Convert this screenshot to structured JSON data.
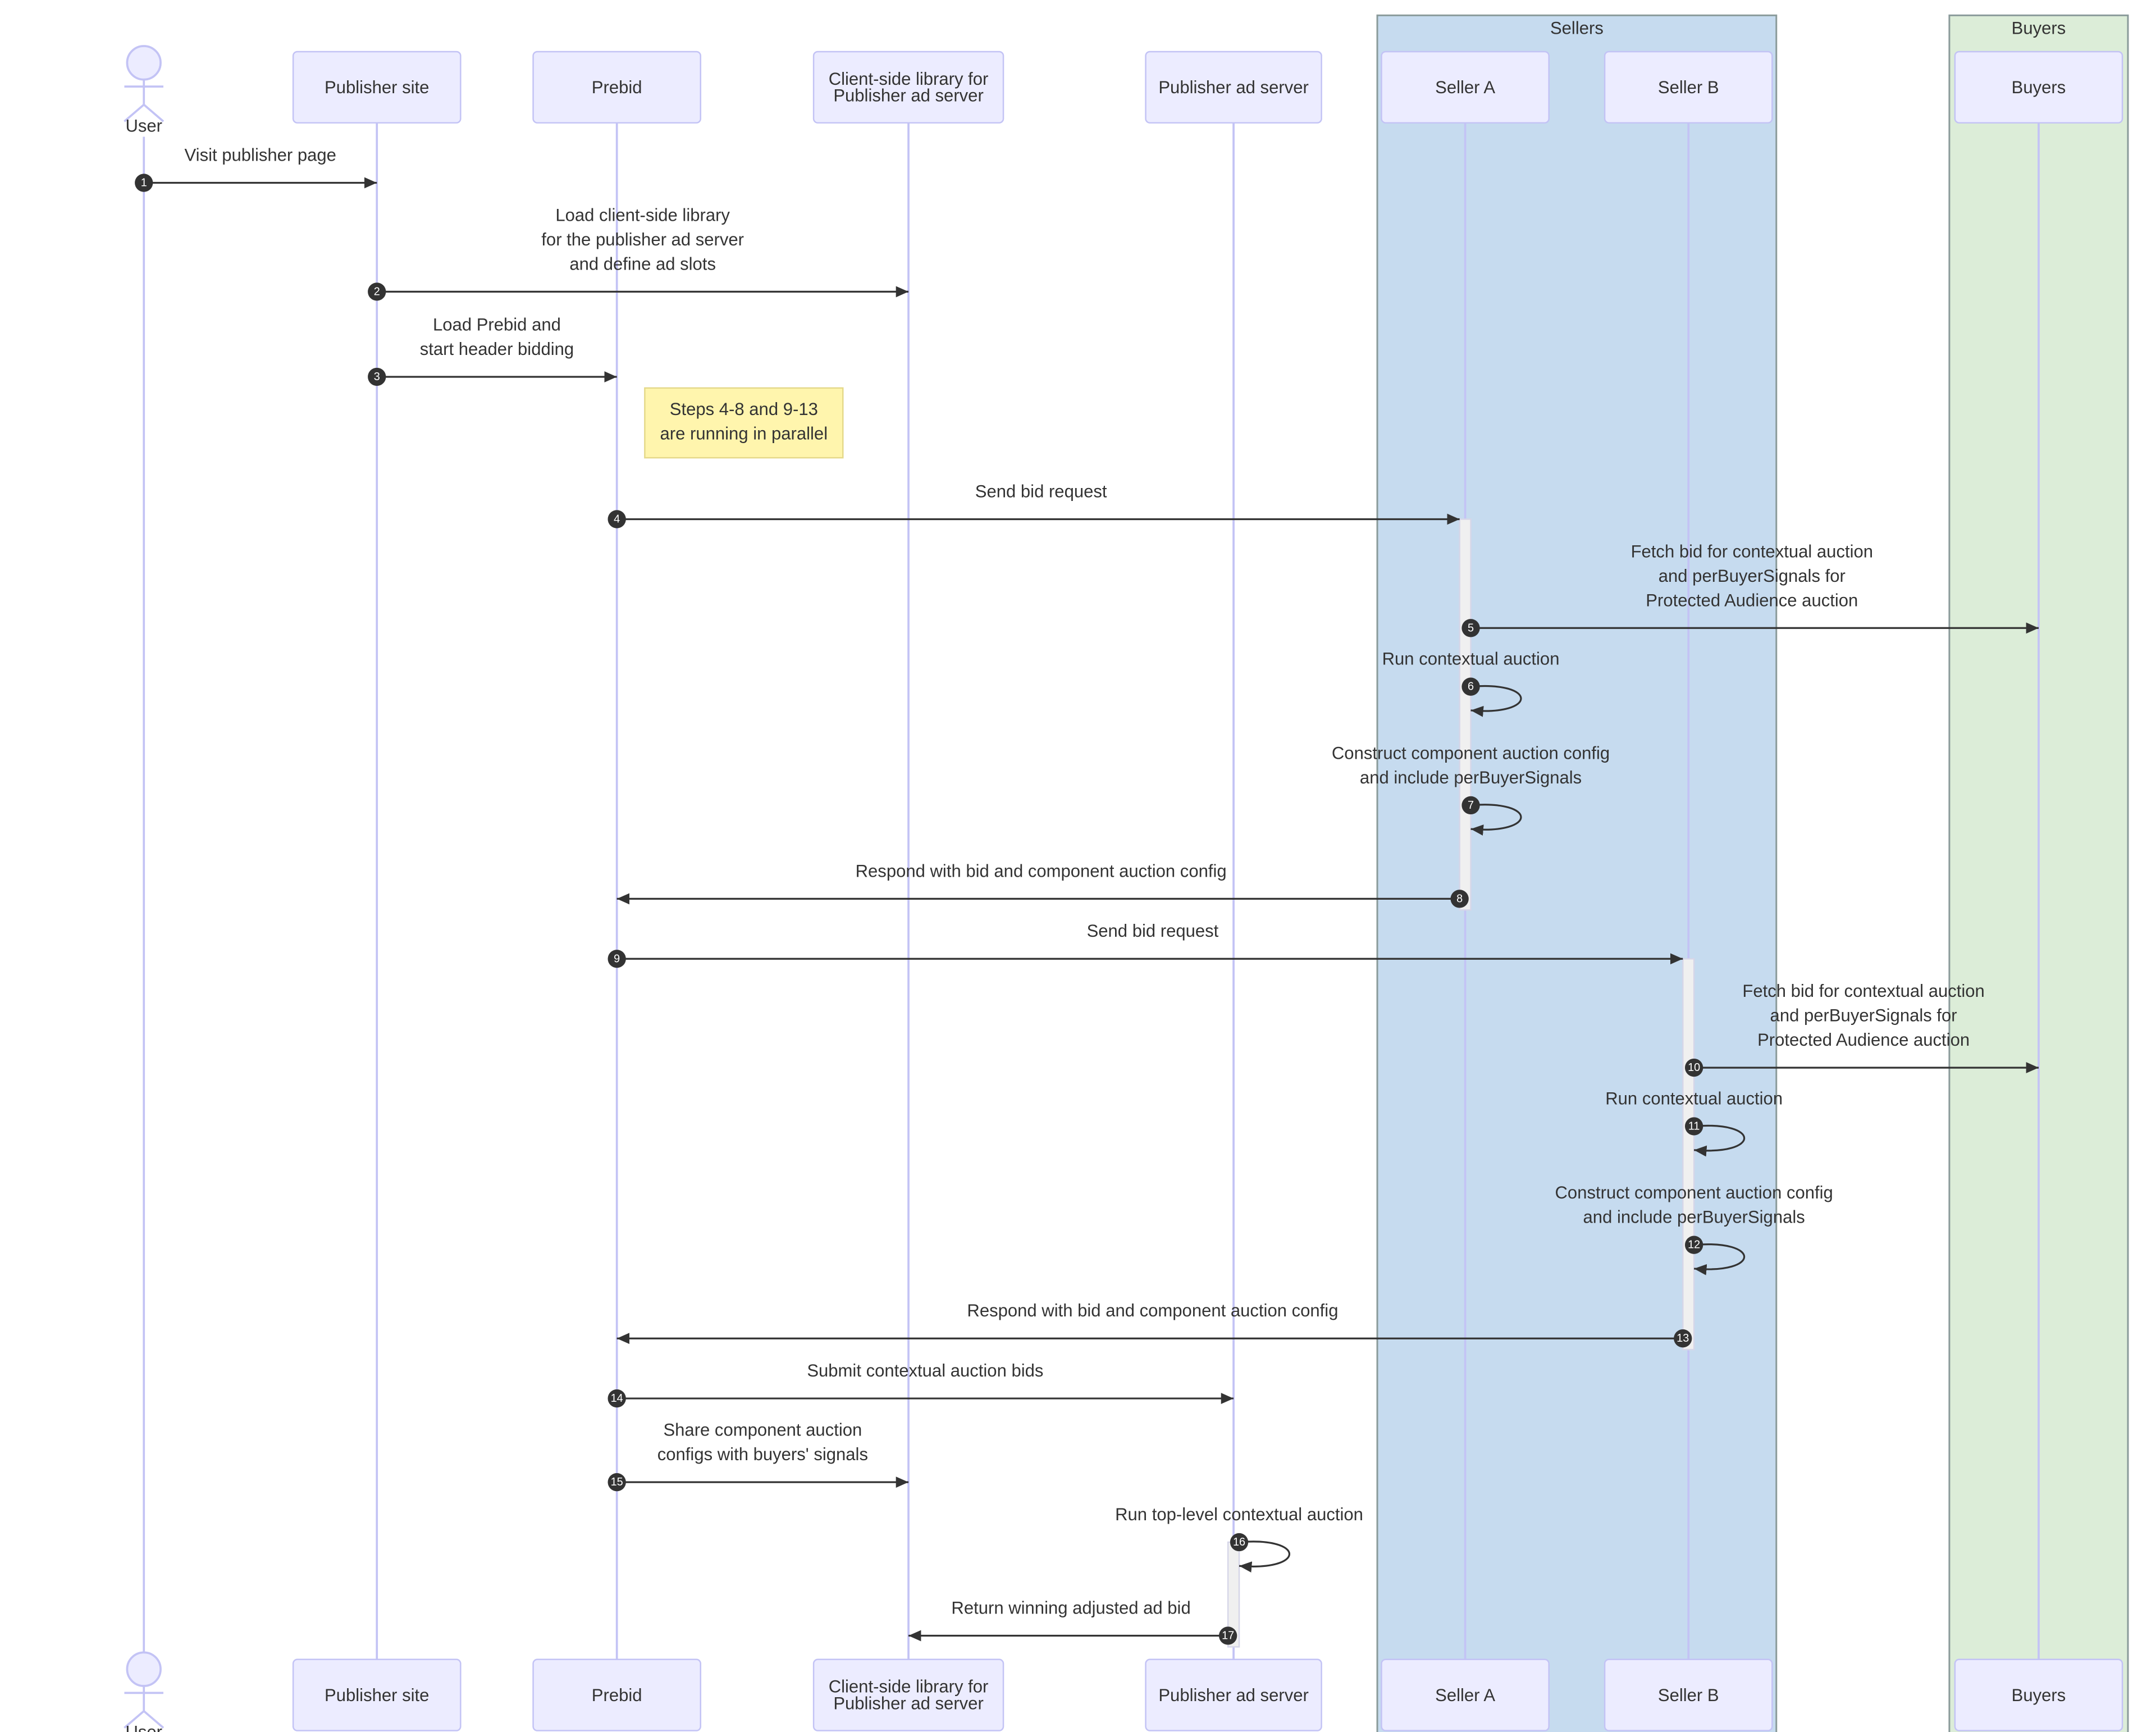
{
  "participants": [
    {
      "label": "User",
      "type": "actor"
    },
    {
      "label": "Publisher site",
      "type": "box"
    },
    {
      "label": "Prebid",
      "type": "box"
    },
    {
      "label": "Client-side library for\nPublisher ad server",
      "type": "box"
    },
    {
      "label": "Publisher ad server",
      "type": "box"
    },
    {
      "label": "Seller A",
      "type": "box"
    },
    {
      "label": "Seller B",
      "type": "box"
    },
    {
      "label": "Buyers",
      "type": "box"
    }
  ],
  "groups": [
    {
      "title": "Sellers",
      "color": "#c6dbef",
      "members": [
        5,
        6
      ]
    },
    {
      "title": "Buyers",
      "color": "#dcedd8",
      "members": [
        7
      ]
    }
  ],
  "note": {
    "text": [
      "Steps 4-8 and 9-13",
      "are running in parallel"
    ],
    "color": "#fff5ad"
  },
  "messages": [
    {
      "n": 1,
      "from": 0,
      "to": 1,
      "label": [
        "Visit publisher page"
      ]
    },
    {
      "n": 2,
      "from": 1,
      "to": 3,
      "label": [
        "Load client-side library",
        "for the publisher ad server",
        "and define ad slots"
      ]
    },
    {
      "n": 3,
      "from": 1,
      "to": 2,
      "label": [
        "Load Prebid and",
        "start header bidding"
      ]
    },
    {
      "n": 4,
      "from": 2,
      "to": 5,
      "label": [
        "Send bid request"
      ]
    },
    {
      "n": 5,
      "from": 5,
      "to": 7,
      "label": [
        "Fetch bid for contextual auction",
        "and perBuyerSignals for",
        "Protected Audience auction"
      ]
    },
    {
      "n": 6,
      "from": 5,
      "to": 5,
      "label": [
        "Run contextual auction"
      ]
    },
    {
      "n": 7,
      "from": 5,
      "to": 5,
      "label": [
        "Construct component auction config",
        "and include perBuyerSignals"
      ]
    },
    {
      "n": 8,
      "from": 5,
      "to": 2,
      "label": [
        "Respond with bid and component auction config"
      ]
    },
    {
      "n": 9,
      "from": 2,
      "to": 6,
      "label": [
        "Send bid request"
      ]
    },
    {
      "n": 10,
      "from": 6,
      "to": 7,
      "label": [
        "Fetch bid for contextual auction",
        "and perBuyerSignals for",
        "Protected Audience auction"
      ]
    },
    {
      "n": 11,
      "from": 6,
      "to": 6,
      "label": [
        "Run contextual auction"
      ]
    },
    {
      "n": 12,
      "from": 6,
      "to": 6,
      "label": [
        "Construct component auction config",
        "and include perBuyerSignals"
      ]
    },
    {
      "n": 13,
      "from": 6,
      "to": 2,
      "label": [
        "Respond with bid and component auction config"
      ]
    },
    {
      "n": 14,
      "from": 2,
      "to": 4,
      "label": [
        "Submit contextual auction bids"
      ]
    },
    {
      "n": 15,
      "from": 2,
      "to": 3,
      "label": [
        "Share component auction",
        "configs with buyers' signals"
      ]
    },
    {
      "n": 16,
      "from": 4,
      "to": 4,
      "label": [
        "Run top-level contextual auction"
      ]
    },
    {
      "n": 17,
      "from": 4,
      "to": 3,
      "label": [
        "Return winning adjusted ad bid"
      ]
    }
  ],
  "activations": [
    {
      "participant": 5,
      "from_step": 4,
      "to_step": 8
    },
    {
      "participant": 6,
      "from_step": 9,
      "to_step": 13
    },
    {
      "participant": 4,
      "from_step": 16,
      "to_step": 17
    }
  ]
}
